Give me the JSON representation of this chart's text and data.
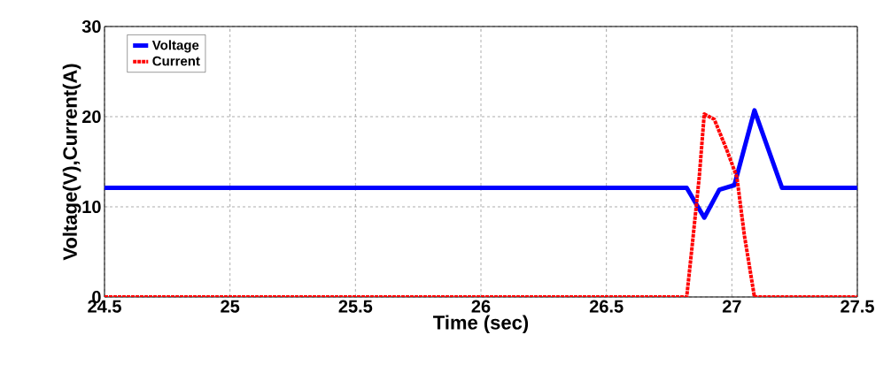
{
  "chart_data": {
    "type": "line",
    "xlabel": "Time (sec)",
    "ylabel": "Voltage(V),Current(A)",
    "xlim": [
      24.5,
      27.5
    ],
    "xticks": [
      24.5,
      25,
      25.5,
      26,
      26.5,
      27,
      27.5
    ],
    "ylim": [
      0,
      30
    ],
    "yticks": [
      0,
      10,
      20,
      30
    ],
    "grid": true,
    "legend": "top left",
    "series": [
      {
        "name": "Voltage",
        "color": "#0000ff",
        "line_style": "solid",
        "x": [
          24.5,
          26.82,
          26.89,
          26.95,
          27.01,
          27.09,
          27.2,
          27.5
        ],
        "values": [
          12.1,
          12.1,
          8.8,
          11.9,
          12.4,
          20.7,
          12.1,
          12.1
        ]
      },
      {
        "name": "Current",
        "color": "#ff0000",
        "line_style": "dotted",
        "x": [
          24.5,
          26.82,
          26.84,
          26.87,
          26.89,
          26.93,
          26.98,
          27.02,
          27.05,
          27.09,
          27.5
        ],
        "values": [
          0,
          0,
          5.2,
          13.3,
          20.3,
          19.7,
          16.3,
          13.3,
          6.8,
          0,
          0
        ]
      }
    ]
  }
}
